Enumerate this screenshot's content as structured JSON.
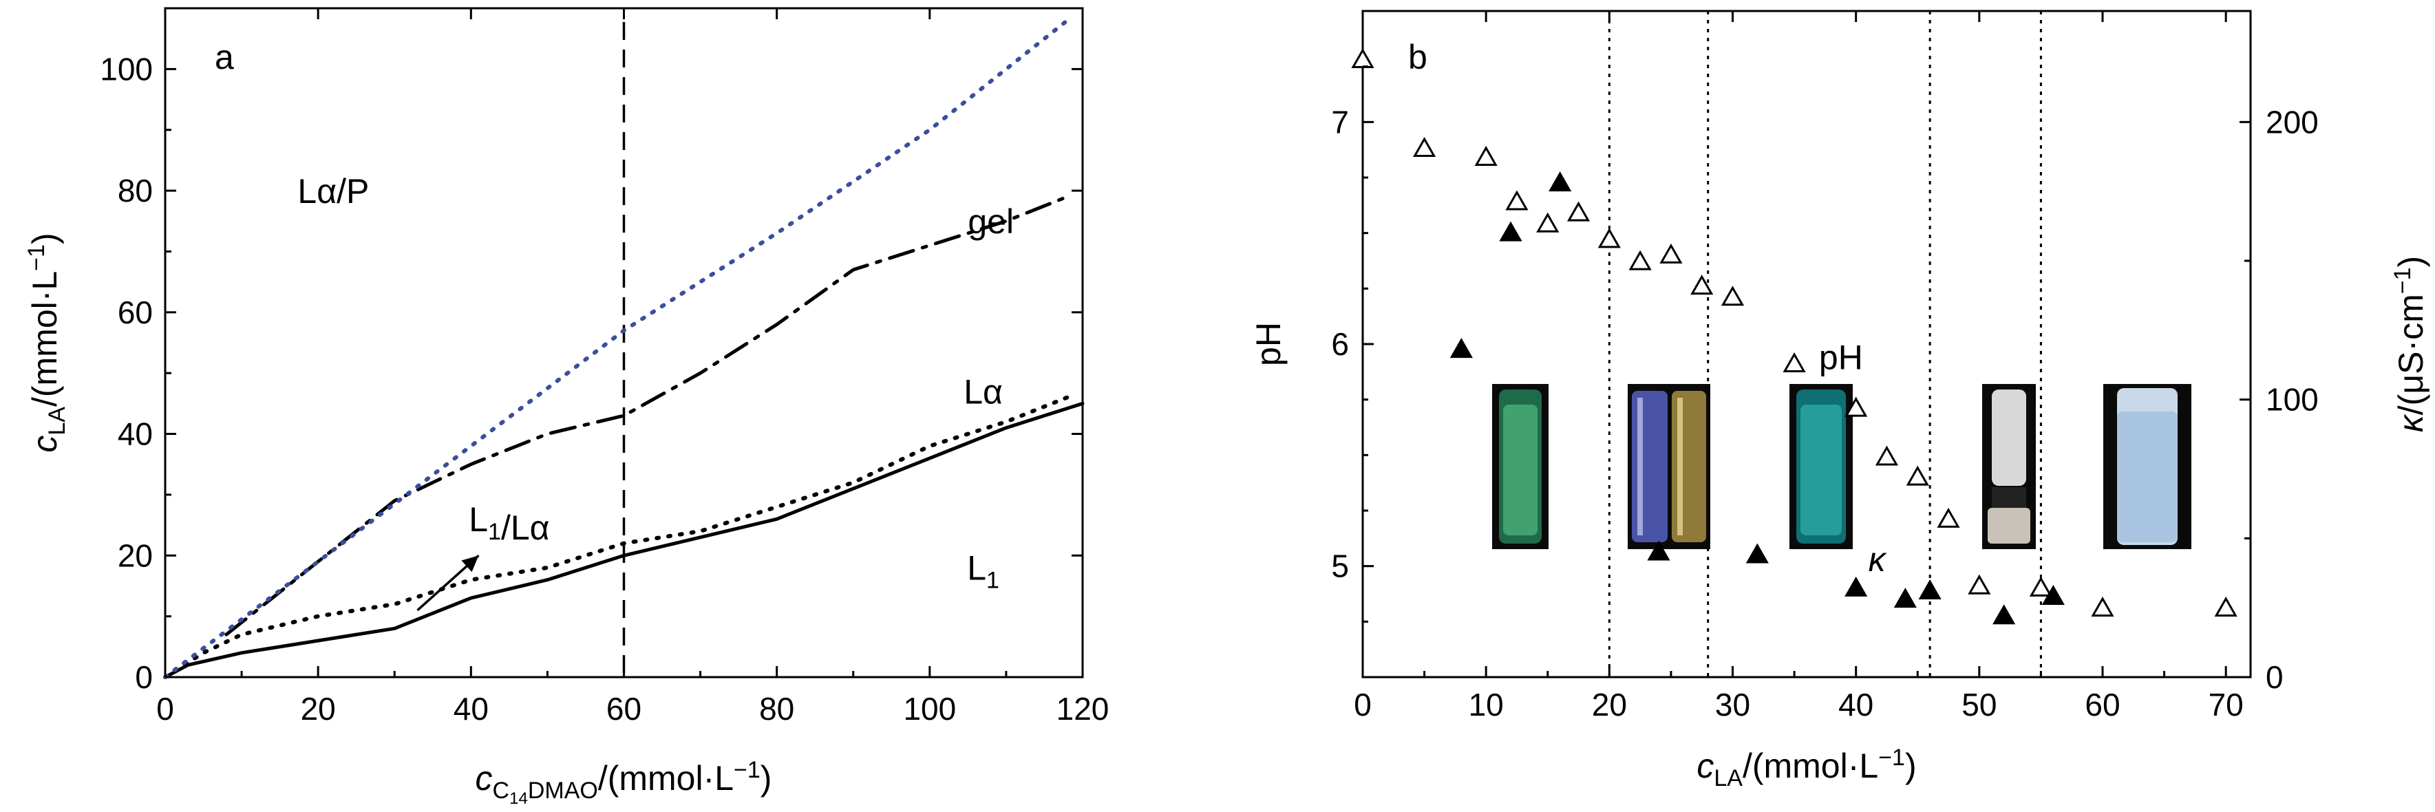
{
  "chart_data": [
    {
      "type": "line",
      "panel_label": "a",
      "xlabel": "c_C14DMAO/(mmol·L⁻¹)",
      "ylabel": "c_LA/(mmol·L⁻¹)",
      "xlim": [
        0,
        120
      ],
      "ylim": [
        0,
        110
      ],
      "xticks": [
        0,
        20,
        40,
        60,
        80,
        100,
        120
      ],
      "yticks": [
        0,
        20,
        40,
        60,
        80,
        100
      ],
      "series": [
        {
          "name": "L1 boundary",
          "style": "solid",
          "color": "#000000",
          "x": [
            0,
            3,
            10,
            20,
            30,
            40,
            50,
            60,
            70,
            80,
            90,
            100,
            110,
            120
          ],
          "y": [
            0,
            2,
            4,
            6,
            8,
            13,
            16,
            20,
            23,
            26,
            31,
            36,
            41,
            45
          ]
        },
        {
          "name": "L1/Lα boundary",
          "style": "dotted",
          "color": "#000000",
          "x": [
            0,
            5,
            10,
            20,
            30,
            40,
            50,
            60,
            70,
            80,
            90,
            100,
            110,
            118
          ],
          "y": [
            0,
            4,
            7,
            10,
            12,
            16,
            18,
            22,
            24,
            28,
            32,
            38,
            42,
            46
          ]
        },
        {
          "name": "Lα boundary",
          "style": "dashdot",
          "color": "#000000",
          "x": [
            8,
            20,
            30,
            40,
            50,
            60,
            70,
            80,
            90,
            100,
            110,
            118
          ],
          "y": [
            7,
            19,
            29,
            35,
            40,
            43,
            50,
            58,
            67,
            71,
            75,
            79
          ]
        },
        {
          "name": "gel boundary",
          "style": "dotted",
          "color": "#3a4f9c",
          "x": [
            0,
            20,
            40,
            60,
            80,
            100,
            118
          ],
          "y": [
            0,
            19,
            38,
            57,
            73,
            90,
            108
          ]
        }
      ],
      "vline": {
        "x": 60,
        "style": "dashed"
      },
      "region_labels": [
        {
          "text": "Lα/P",
          "x": 22,
          "y": 78
        },
        {
          "text": "gel",
          "x": 108,
          "y": 73
        },
        {
          "text": "Lα",
          "x": 107,
          "y": 45
        },
        {
          "text": "L1/Lα",
          "x": 45,
          "y": 24
        },
        {
          "text": "L1",
          "x": 107,
          "y": 16
        }
      ],
      "arrow": {
        "from": [
          33,
          11
        ],
        "to": [
          41,
          20
        ]
      }
    },
    {
      "type": "scatter",
      "panel_label": "b",
      "xlabel": "c_LA/(mmol·L⁻¹)",
      "ylabel": "pH",
      "ylabel_right": "κ/(μS·cm⁻¹)",
      "xlim": [
        0,
        72
      ],
      "ylim": [
        4.5,
        7.5
      ],
      "ylim_right": [
        0,
        240
      ],
      "xticks": [
        0,
        10,
        20,
        30,
        40,
        50,
        60,
        70
      ],
      "yticks": [
        5,
        6,
        7
      ],
      "yticks_right": [
        0,
        100,
        200
      ],
      "series": [
        {
          "name": "pH",
          "marker": "open-triangle",
          "axis": "left",
          "x": [
            0,
            5,
            10,
            12.5,
            15,
            17.5,
            20,
            22.5,
            25,
            27.5,
            30,
            35,
            40,
            42.5,
            45,
            47.5,
            50,
            55,
            60,
            70
          ],
          "y": [
            7.28,
            6.88,
            6.84,
            6.64,
            6.54,
            6.59,
            6.47,
            6.37,
            6.4,
            6.26,
            6.21,
            5.91,
            5.71,
            5.49,
            5.4,
            5.21,
            4.91,
            4.9,
            4.81,
            4.81
          ]
        },
        {
          "name": "κ",
          "marker": "filled-triangle",
          "axis": "right",
          "x": [
            8,
            12,
            16,
            24,
            32,
            40,
            44,
            46,
            52,
            56
          ],
          "y": [
            118,
            160,
            178,
            45,
            44,
            32,
            28,
            31,
            22,
            29
          ]
        }
      ],
      "vlines": [
        20,
        28,
        46,
        55
      ],
      "annotations": [
        {
          "text": "pH",
          "x": 37,
          "y": 5.93
        },
        {
          "text": "κ",
          "x": 41,
          "y": 5.02
        }
      ],
      "insets": [
        {
          "name": "vial-1",
          "description": "green"
        },
        {
          "name": "vial-2",
          "description": "blue-gold"
        },
        {
          "name": "vial-3",
          "description": "teal"
        },
        {
          "name": "vial-4",
          "description": "white-gel"
        },
        {
          "name": "vial-5",
          "description": "milky"
        }
      ]
    }
  ]
}
